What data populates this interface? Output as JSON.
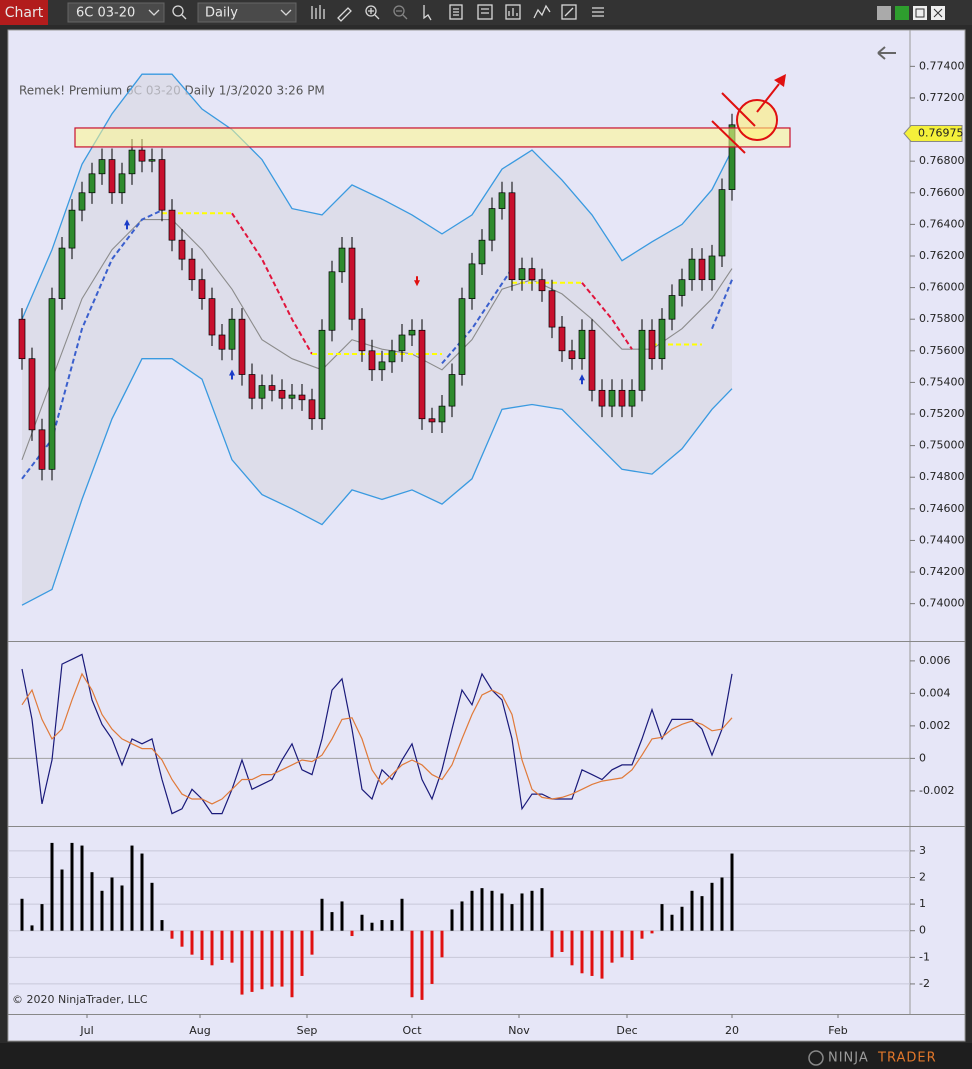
{
  "toolbar": {
    "tab": "Chart",
    "instrument": "6C 03-20",
    "interval": "Daily"
  },
  "copyright": "© 2020 NinjaTrader, LLC",
  "footer": {
    "logo_main": "NINJA",
    "logo_accent": "TRADER"
  },
  "chart_data": [
    {
      "type": "candlestick",
      "title": "Remek!  Premium  6C 03-20  Daily  1/3/2020 3:26 PM",
      "x": [
        0,
        2,
        4,
        6,
        8,
        10,
        12,
        14,
        16,
        18,
        20,
        22,
        24,
        26,
        28,
        30,
        32,
        34,
        36,
        38,
        40,
        42,
        44,
        46,
        48,
        50,
        52,
        54,
        56,
        58,
        60,
        62,
        64,
        66,
        68,
        70,
        72,
        74,
        76,
        78,
        80,
        82,
        84,
        86,
        88,
        90,
        92,
        94,
        96,
        98,
        100,
        102,
        104,
        106,
        108,
        110,
        112,
        114,
        116,
        118,
        120,
        122,
        124,
        126,
        128,
        130,
        132,
        134,
        136,
        138,
        140,
        142
      ],
      "open": [
        0.758,
        0.7555,
        0.751,
        0.7485,
        0.7593,
        0.7625,
        0.7649,
        0.766,
        0.7672,
        0.7681,
        0.766,
        0.7672,
        0.7687,
        0.768,
        0.7681,
        0.7649,
        0.763,
        0.7618,
        0.7605,
        0.7593,
        0.757,
        0.7561,
        0.758,
        0.7545,
        0.753,
        0.7538,
        0.7535,
        0.753,
        0.7532,
        0.7529,
        0.7517,
        0.7573,
        0.761,
        0.7625,
        0.758,
        0.756,
        0.7548,
        0.7553,
        0.756,
        0.757,
        0.7573,
        0.7517,
        0.7515,
        0.7525,
        0.7545,
        0.7593,
        0.7615,
        0.763,
        0.765,
        0.766,
        0.7605,
        0.7612,
        0.7605,
        0.7598,
        0.7575,
        0.756,
        0.7555,
        0.7573,
        0.7535,
        0.7525,
        0.7535,
        0.7525,
        0.7535,
        0.7573,
        0.7555,
        0.758,
        0.7595,
        0.7605,
        0.7618,
        0.7605,
        0.762,
        0.7662
      ],
      "high": [
        0.7587,
        0.7562,
        0.7517,
        0.76,
        0.7632,
        0.7656,
        0.7667,
        0.7679,
        0.7688,
        0.7688,
        0.7679,
        0.7694,
        0.7694,
        0.7688,
        0.7688,
        0.7656,
        0.7637,
        0.7625,
        0.7612,
        0.76,
        0.7577,
        0.7587,
        0.7587,
        0.7552,
        0.7545,
        0.7545,
        0.7542,
        0.7539,
        0.7539,
        0.7536,
        0.758,
        0.7617,
        0.7632,
        0.7632,
        0.7587,
        0.7567,
        0.756,
        0.7567,
        0.7577,
        0.758,
        0.758,
        0.7524,
        0.7532,
        0.7552,
        0.76,
        0.7622,
        0.7637,
        0.7657,
        0.7667,
        0.7667,
        0.7619,
        0.7619,
        0.7612,
        0.7605,
        0.7582,
        0.7567,
        0.758,
        0.758,
        0.7542,
        0.7542,
        0.7542,
        0.7542,
        0.758,
        0.758,
        0.7587,
        0.7602,
        0.7612,
        0.7625,
        0.7625,
        0.7627,
        0.7669,
        0.771
      ],
      "low": [
        0.7548,
        0.7503,
        0.7478,
        0.7478,
        0.7586,
        0.7618,
        0.7642,
        0.7653,
        0.7665,
        0.7653,
        0.7653,
        0.7665,
        0.7673,
        0.7673,
        0.7642,
        0.7623,
        0.7611,
        0.7598,
        0.7586,
        0.7563,
        0.7554,
        0.7554,
        0.7538,
        0.7523,
        0.7523,
        0.7528,
        0.7523,
        0.7523,
        0.7522,
        0.751,
        0.751,
        0.7566,
        0.7603,
        0.7573,
        0.7553,
        0.7541,
        0.7541,
        0.7546,
        0.7553,
        0.7563,
        0.751,
        0.7508,
        0.7508,
        0.7518,
        0.7538,
        0.7586,
        0.7608,
        0.7623,
        0.7643,
        0.7598,
        0.7598,
        0.7598,
        0.7591,
        0.7568,
        0.7553,
        0.7548,
        0.7548,
        0.7528,
        0.7518,
        0.7518,
        0.7518,
        0.7518,
        0.7528,
        0.7548,
        0.7548,
        0.7573,
        0.7588,
        0.7598,
        0.7598,
        0.7598,
        0.7613,
        0.7655
      ],
      "close": [
        0.7555,
        0.751,
        0.7485,
        0.7593,
        0.7625,
        0.7649,
        0.766,
        0.7672,
        0.7681,
        0.766,
        0.7672,
        0.7687,
        0.768,
        0.7681,
        0.7649,
        0.763,
        0.7618,
        0.7605,
        0.7593,
        0.757,
        0.7561,
        0.758,
        0.7545,
        0.753,
        0.7538,
        0.7535,
        0.753,
        0.7532,
        0.7529,
        0.7517,
        0.7573,
        0.761,
        0.7625,
        0.758,
        0.756,
        0.7548,
        0.7553,
        0.756,
        0.757,
        0.7573,
        0.7517,
        0.7515,
        0.7525,
        0.7545,
        0.7593,
        0.7615,
        0.763,
        0.765,
        0.766,
        0.7605,
        0.7612,
        0.7605,
        0.7598,
        0.7575,
        0.756,
        0.7555,
        0.7573,
        0.7535,
        0.7525,
        0.7535,
        0.7525,
        0.7535,
        0.7573,
        0.7555,
        0.758,
        0.7595,
        0.7605,
        0.7618,
        0.7605,
        0.762,
        0.7662,
        0.7703
      ],
      "up_color": "#2e8b2e",
      "down_color": "#c8102e",
      "bands": {
        "x": [
          0,
          6,
          12,
          18,
          24,
          30,
          36,
          42,
          48,
          54,
          60,
          66,
          72,
          78,
          84,
          90,
          96,
          102,
          108,
          114,
          120,
          126,
          132,
          138,
          142
        ],
        "upper": [
          0.758,
          0.7624,
          0.7678,
          0.771,
          0.7735,
          0.7735,
          0.7713,
          0.77,
          0.7681,
          0.765,
          0.7646,
          0.7665,
          0.7656,
          0.7646,
          0.7634,
          0.7646,
          0.7675,
          0.7687,
          0.7668,
          0.7646,
          0.7617,
          0.7629,
          0.764,
          0.7662,
          0.7687
        ],
        "middle": [
          0.7491,
          0.7542,
          0.7593,
          0.7624,
          0.7643,
          0.7643,
          0.7624,
          0.7599,
          0.7567,
          0.7555,
          0.7548,
          0.7567,
          0.7561,
          0.7558,
          0.7548,
          0.7567,
          0.7599,
          0.7605,
          0.7596,
          0.758,
          0.7561,
          0.7561,
          0.7574,
          0.7593,
          0.7612
        ],
        "lower": [
          0.7399,
          0.7409,
          0.7466,
          0.7517,
          0.7555,
          0.7555,
          0.7542,
          0.7491,
          0.7469,
          0.746,
          0.745,
          0.7472,
          0.7466,
          0.7472,
          0.7463,
          0.7479,
          0.7523,
          0.7526,
          0.7523,
          0.7504,
          0.7485,
          0.7482,
          0.7498,
          0.7523,
          0.7536
        ],
        "band_color": "#3a9ae0",
        "middle_color": "#8c8c8c",
        "fill": "#d8d8e4"
      },
      "stop_segments": [
        {
          "color": "#3a5fcd",
          "x": [
            0,
            6,
            12,
            18,
            24,
            28
          ],
          "values": [
            0.7479,
            0.7504,
            0.7574,
            0.7618,
            0.7643,
            0.7649
          ]
        },
        {
          "color": "#ffff00",
          "x": [
            28,
            42
          ],
          "values": [
            0.7647,
            0.7647
          ]
        },
        {
          "color": "#e0143c",
          "x": [
            42,
            48,
            54,
            58
          ],
          "values": [
            0.7647,
            0.7618,
            0.758,
            0.7558
          ]
        },
        {
          "color": "#ffff00",
          "x": [
            58,
            84
          ],
          "values": [
            0.7558,
            0.7558
          ]
        },
        {
          "color": "#3a5fcd",
          "x": [
            84,
            90,
            98
          ],
          "values": [
            0.7552,
            0.7574,
            0.7612
          ]
        },
        {
          "color": "#ffff00",
          "x": [
            98,
            112
          ],
          "values": [
            0.7603,
            0.7603
          ]
        },
        {
          "color": "#e0143c",
          "x": [
            112,
            118,
            122
          ],
          "values": [
            0.7603,
            0.758,
            0.7561
          ]
        },
        {
          "color": "#ffff00",
          "x": [
            126,
            136
          ],
          "values": [
            0.7564,
            0.7564
          ]
        },
        {
          "color": "#3a5fcd",
          "x": [
            138,
            142
          ],
          "values": [
            0.7574,
            0.7605
          ]
        }
      ],
      "up_arrows": {
        "color": "#1a3cc8",
        "x": [
          21,
          42,
          112
        ],
        "values": [
          0.764,
          0.7545,
          0.7542
        ]
      },
      "down_arrows": {
        "color": "#e01010",
        "x": [
          79
        ],
        "values": [
          0.7604
        ]
      },
      "zone": {
        "xlim": [
          10.6,
          153.6
        ],
        "ylim": [
          0.7689,
          0.7701
        ],
        "color": "#c8102e"
      },
      "last_price": 0.76975,
      "xlim": [
        -2.8,
        177.6
      ],
      "ylim": [
        0.7377,
        0.7763
      ],
      "yticks": [
        {
          "value": 0.774,
          "label": "0.77400"
        },
        {
          "value": 0.772,
          "label": "0.77200"
        },
        {
          "value": 0.768,
          "label": "0.76800"
        },
        {
          "value": 0.766,
          "label": "0.76600"
        },
        {
          "value": 0.764,
          "label": "0.76400"
        },
        {
          "value": 0.762,
          "label": "0.76200"
        },
        {
          "value": 0.76,
          "label": "0.76000"
        },
        {
          "value": 0.758,
          "label": "0.75800"
        },
        {
          "value": 0.756,
          "label": "0.75600"
        },
        {
          "value": 0.754,
          "label": "0.75400"
        },
        {
          "value": 0.752,
          "label": "0.75200"
        },
        {
          "value": 0.75,
          "label": "0.75000"
        },
        {
          "value": 0.748,
          "label": "0.74800"
        },
        {
          "value": 0.746,
          "label": "0.74600"
        },
        {
          "value": 0.744,
          "label": "0.74400"
        },
        {
          "value": 0.742,
          "label": "0.74200"
        },
        {
          "value": 0.74,
          "label": "0.74000"
        }
      ],
      "grid": false
    },
    {
      "type": "line",
      "x": [
        0,
        2,
        4,
        6,
        8,
        10,
        12,
        14,
        16,
        18,
        20,
        22,
        24,
        26,
        28,
        30,
        32,
        34,
        36,
        38,
        40,
        42,
        44,
        46,
        48,
        50,
        52,
        54,
        56,
        58,
        60,
        62,
        64,
        66,
        68,
        70,
        72,
        74,
        76,
        78,
        80,
        82,
        84,
        86,
        88,
        90,
        92,
        94,
        96,
        98,
        100,
        102,
        104,
        106,
        108,
        110,
        112,
        114,
        116,
        118,
        120,
        122,
        124,
        126,
        128,
        130,
        132,
        134,
        136,
        138,
        140,
        142
      ],
      "series": [
        {
          "color": "#1a1a7a",
          "values": [
            0.0055,
            0.0024,
            -0.0028,
            -0.0001,
            0.0058,
            0.0061,
            0.0064,
            0.0036,
            0.0021,
            0.0012,
            -0.0004,
            0.0012,
            0.0009,
            0.0012,
            -0.0013,
            -0.0034,
            -0.0031,
            -0.0019,
            -0.0025,
            -0.0034,
            -0.0034,
            -0.0019,
            -0.0001,
            -0.0019,
            -0.0016,
            -0.0013,
            -0.0001,
            0.0009,
            -0.0007,
            -0.001,
            0.0012,
            0.0042,
            0.0049,
            0.0018,
            -0.0019,
            -0.0025,
            -0.0007,
            -0.0013,
            -0.0001,
            0.0009,
            -0.0013,
            -0.0025,
            -0.0007,
            0.0018,
            0.0042,
            0.0033,
            0.0052,
            0.0042,
            0.0036,
            0.0012,
            -0.0031,
            -0.0022,
            -0.0022,
            -0.0025,
            -0.0025,
            -0.0025,
            -0.0007,
            -0.001,
            -0.0013,
            -0.0007,
            -0.0004,
            -0.0004,
            0.0012,
            0.003,
            0.0012,
            0.0024,
            0.0024,
            0.0024,
            0.0018,
            0.0002,
            0.0018,
            0.0052
          ]
        },
        {
          "color": "#e07a3a",
          "values": [
            0.0033,
            0.0042,
            0.0024,
            0.0012,
            0.0018,
            0.0036,
            0.0052,
            0.0042,
            0.0027,
            0.0018,
            0.0012,
            0.0009,
            0.0006,
            0.0006,
            -0.0001,
            -0.0013,
            -0.0022,
            -0.0025,
            -0.0025,
            -0.0028,
            -0.0025,
            -0.0019,
            -0.0013,
            -0.0013,
            -0.001,
            -0.001,
            -0.0007,
            -0.0004,
            -0.0001,
            -0.0002,
            0.0002,
            0.0012,
            0.0024,
            0.0025,
            0.0012,
            -0.0007,
            -0.0016,
            -0.001,
            -0.0004,
            -0.0001,
            -0.0004,
            -0.001,
            -0.0013,
            -0.0004,
            0.0012,
            0.0027,
            0.0039,
            0.0042,
            0.0039,
            0.0027,
            -0.0001,
            -0.0019,
            -0.0024,
            -0.0025,
            -0.0024,
            -0.0022,
            -0.0019,
            -0.0016,
            -0.0014,
            -0.0013,
            -0.0012,
            -0.0007,
            0.0002,
            0.0012,
            0.0013,
            0.0018,
            0.0021,
            0.0023,
            0.0021,
            0.0017,
            0.0018,
            0.0025
          ]
        }
      ],
      "xlim": [
        -2.8,
        177.6
      ],
      "ylim": [
        -0.0041,
        0.0071
      ],
      "yticks": [
        0.006,
        0.004,
        0.002,
        0,
        -0.002
      ],
      "zero_line": true,
      "grid": false
    },
    {
      "type": "bar",
      "x": [
        0,
        2,
        4,
        6,
        8,
        10,
        12,
        14,
        16,
        18,
        20,
        22,
        24,
        26,
        28,
        30,
        32,
        34,
        36,
        38,
        40,
        42,
        44,
        46,
        48,
        50,
        52,
        54,
        56,
        58,
        60,
        62,
        64,
        66,
        68,
        70,
        72,
        74,
        76,
        78,
        80,
        82,
        84,
        86,
        88,
        90,
        92,
        94,
        96,
        98,
        100,
        102,
        104,
        106,
        108,
        110,
        112,
        114,
        116,
        118,
        120,
        122,
        124,
        126,
        128,
        130,
        132,
        134,
        136,
        138,
        140,
        142
      ],
      "values": [
        1.2,
        0.2,
        1.0,
        3.3,
        2.3,
        3.3,
        3.2,
        2.2,
        1.5,
        2.0,
        1.7,
        3.2,
        2.9,
        1.8,
        0.4,
        -0.3,
        -0.6,
        -0.9,
        -1.1,
        -1.3,
        -1.1,
        -1.2,
        -2.4,
        -2.3,
        -2.2,
        -2.1,
        -2.1,
        -2.5,
        -1.7,
        -0.9,
        1.2,
        0.7,
        1.1,
        -0.2,
        0.6,
        0.3,
        0.4,
        0.4,
        1.2,
        -2.5,
        -2.6,
        -2.0,
        -1.0,
        0.8,
        1.1,
        1.5,
        1.6,
        1.5,
        1.4,
        1.0,
        1.4,
        1.5,
        1.6,
        -1.0,
        -0.8,
        -1.3,
        -1.6,
        -1.7,
        -1.8,
        -1.2,
        -1.0,
        -1.1,
        -0.3,
        -0.1,
        1.0,
        0.6,
        0.9,
        1.5,
        1.3,
        1.8,
        2.0,
        2.9
      ],
      "up_color": "#000000",
      "down_color": "#e01010",
      "xlim": [
        -2.8,
        177.6
      ],
      "ylim": [
        -3.13,
        3.86
      ],
      "yticks": [
        3,
        2,
        1,
        0,
        -1,
        -2
      ],
      "xticks": [
        {
          "value": 13,
          "label": "Jul"
        },
        {
          "value": 35.6,
          "label": "Aug"
        },
        {
          "value": 57,
          "label": "Sep"
        },
        {
          "value": 78,
          "label": "Oct"
        },
        {
          "value": 99.4,
          "label": "Nov"
        },
        {
          "value": 121,
          "label": "Dec"
        },
        {
          "value": 142,
          "label": "20"
        },
        {
          "value": 163.2,
          "label": "Feb"
        }
      ],
      "grid": true
    }
  ]
}
